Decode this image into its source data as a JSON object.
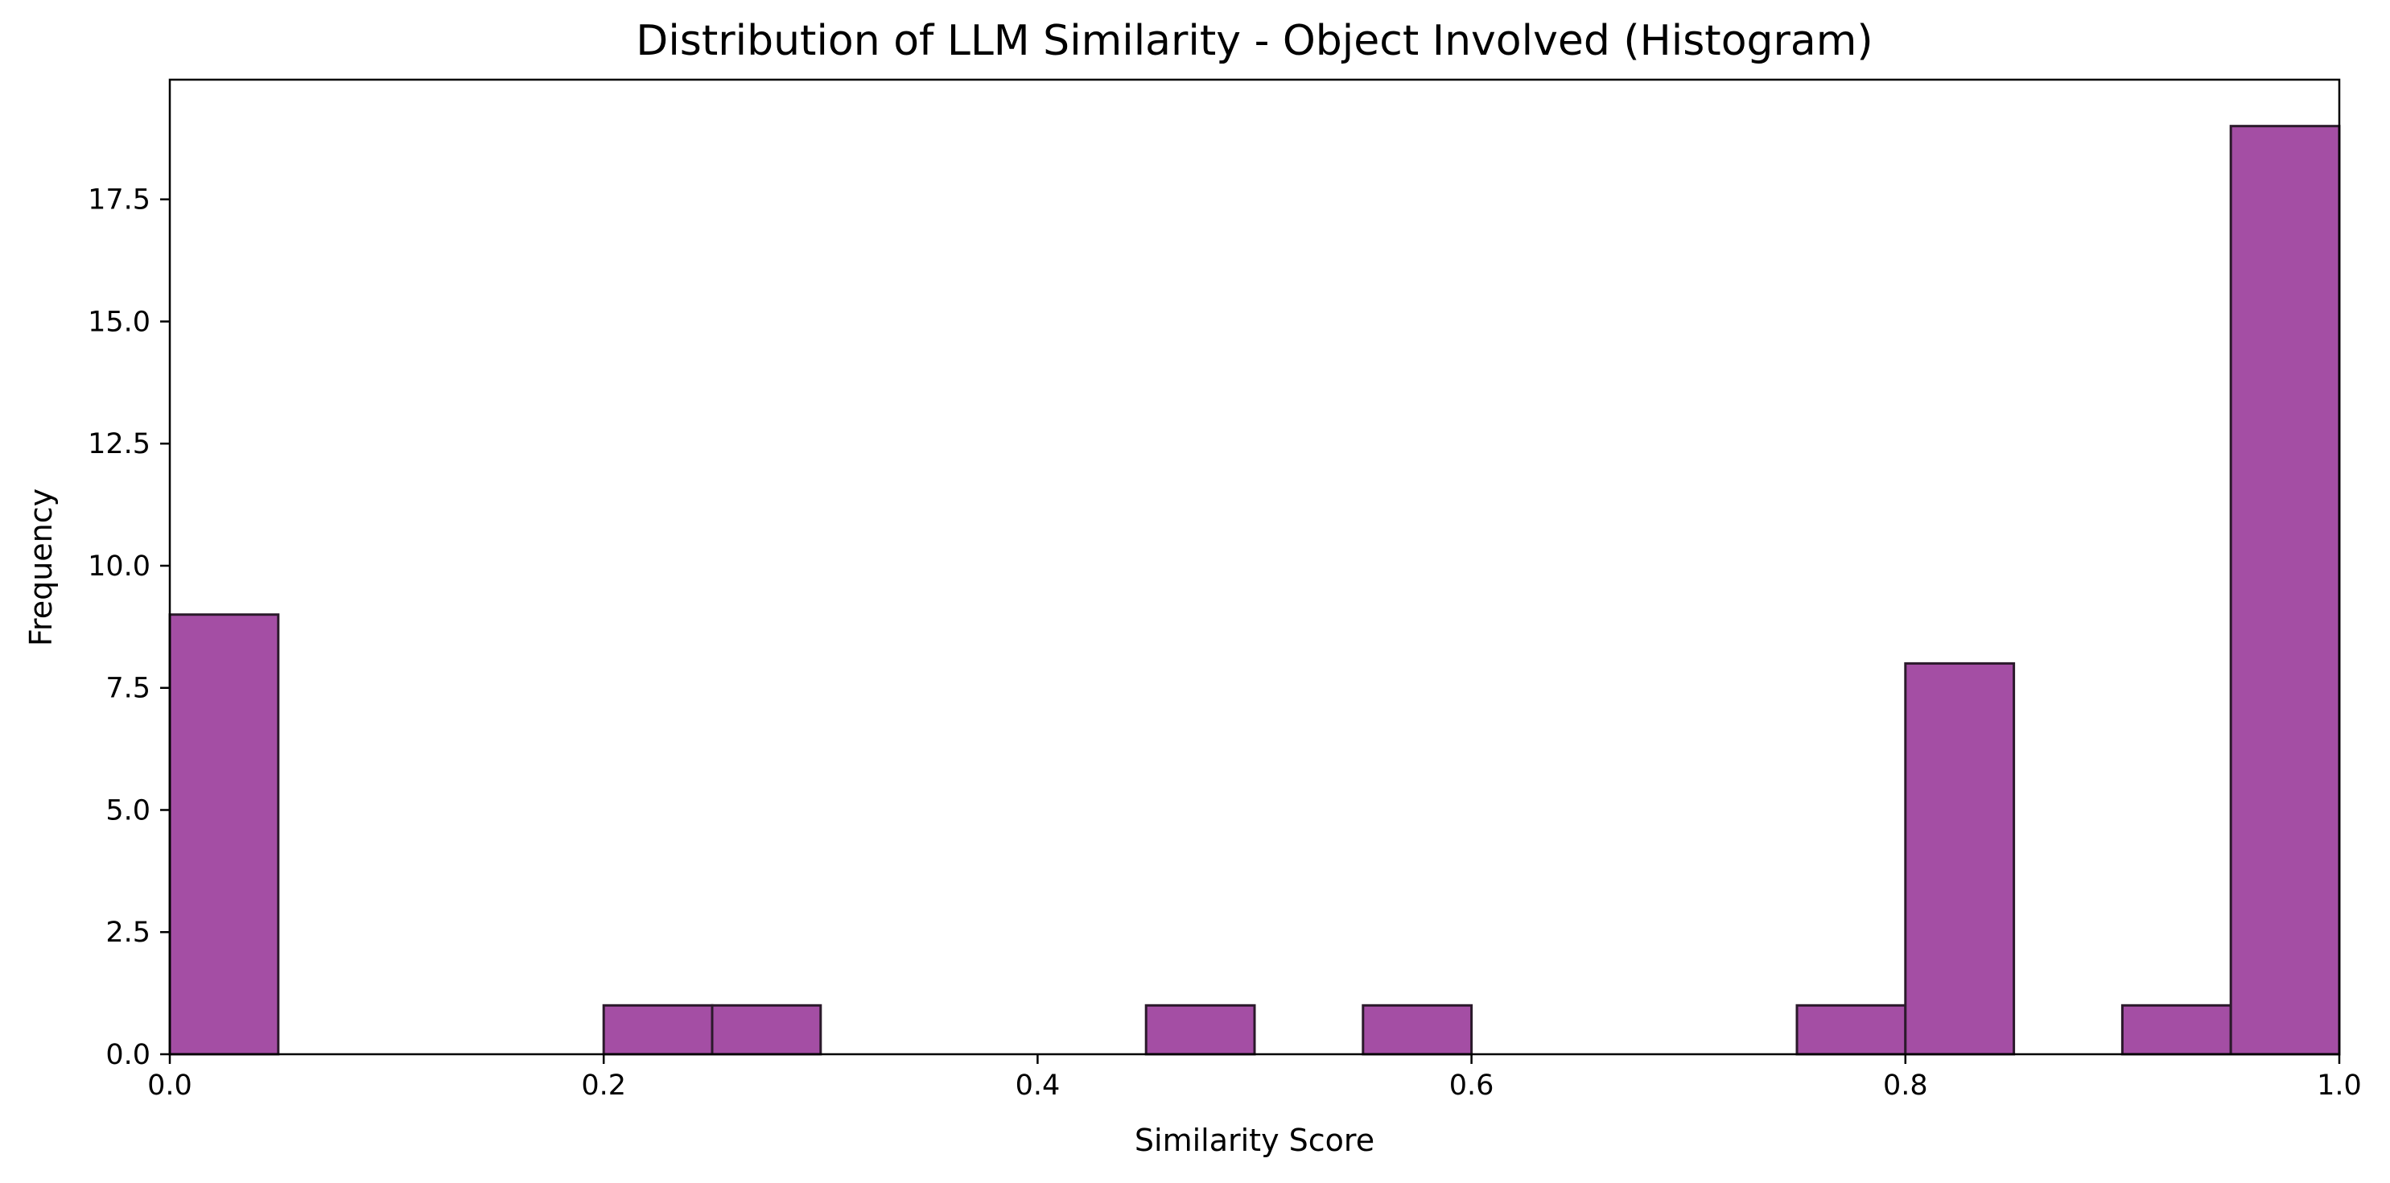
{
  "chart_data": {
    "type": "bar",
    "title": "Distribution of LLM Similarity - Object Involved (Histogram)",
    "xlabel": "Similarity Score",
    "ylabel": "Frequency",
    "xlim": [
      0.0,
      1.0
    ],
    "ylim": [
      0,
      19.95
    ],
    "grid": false,
    "legend": "none",
    "bar_color": "#a44ea4",
    "edge_color": "#2b1a2b",
    "x_ticks": [
      "0.0",
      "0.2",
      "0.4",
      "0.6",
      "0.8",
      "1.0"
    ],
    "y_ticks": [
      "0.0",
      "2.5",
      "5.0",
      "7.5",
      "10.0",
      "12.5",
      "15.0",
      "17.5"
    ],
    "bins": [
      {
        "x0": 0.0,
        "x1": 0.05,
        "count": 9
      },
      {
        "x0": 0.05,
        "x1": 0.1,
        "count": 0
      },
      {
        "x0": 0.1,
        "x1": 0.15,
        "count": 0
      },
      {
        "x0": 0.15,
        "x1": 0.2,
        "count": 0
      },
      {
        "x0": 0.2,
        "x1": 0.25,
        "count": 1
      },
      {
        "x0": 0.25,
        "x1": 0.3,
        "count": 1
      },
      {
        "x0": 0.3,
        "x1": 0.35,
        "count": 0
      },
      {
        "x0": 0.35,
        "x1": 0.4,
        "count": 0
      },
      {
        "x0": 0.4,
        "x1": 0.45,
        "count": 0
      },
      {
        "x0": 0.45,
        "x1": 0.5,
        "count": 1
      },
      {
        "x0": 0.5,
        "x1": 0.55,
        "count": 0
      },
      {
        "x0": 0.55,
        "x1": 0.6,
        "count": 1
      },
      {
        "x0": 0.6,
        "x1": 0.65,
        "count": 0
      },
      {
        "x0": 0.65,
        "x1": 0.7,
        "count": 0
      },
      {
        "x0": 0.7,
        "x1": 0.75,
        "count": 0
      },
      {
        "x0": 0.75,
        "x1": 0.8,
        "count": 1
      },
      {
        "x0": 0.8,
        "x1": 0.85,
        "count": 8
      },
      {
        "x0": 0.85,
        "x1": 0.9,
        "count": 0
      },
      {
        "x0": 0.9,
        "x1": 0.95,
        "count": 1
      },
      {
        "x0": 0.95,
        "x1": 1.0,
        "count": 19
      }
    ]
  }
}
